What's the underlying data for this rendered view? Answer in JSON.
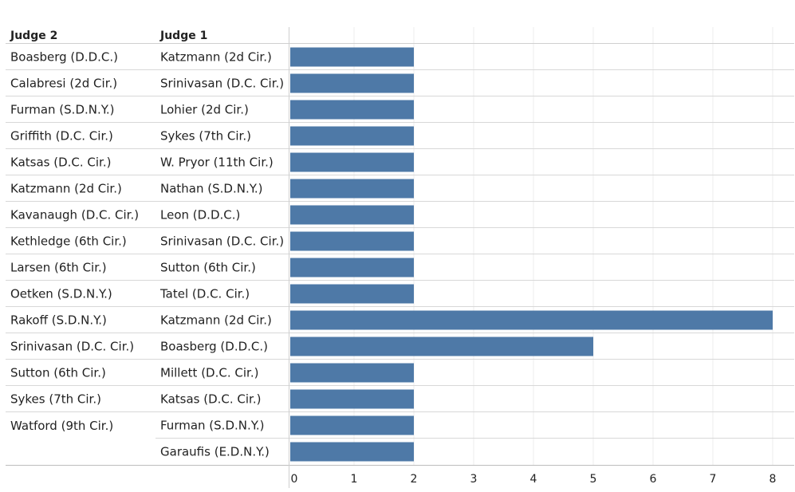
{
  "chart_data": {
    "type": "bar",
    "orientation": "horizontal",
    "headers": {
      "judge2": "Judge 2",
      "judge1": "Judge 1"
    },
    "rows": [
      {
        "judge2": "Boasberg (D.D.C.)",
        "judge1": "Katzmann (2d Cir.)",
        "value": 2
      },
      {
        "judge2": "Calabresi (2d Cir.)",
        "judge1": "Srinivasan (D.C. Cir.)",
        "value": 2
      },
      {
        "judge2": "Furman (S.D.N.Y.)",
        "judge1": "Lohier (2d Cir.)",
        "value": 2
      },
      {
        "judge2": "Griffith (D.C. Cir.)",
        "judge1": "Sykes (7th Cir.)",
        "value": 2
      },
      {
        "judge2": "Katsas (D.C. Cir.)",
        "judge1": "W. Pryor (11th Cir.)",
        "value": 2
      },
      {
        "judge2": "Katzmann (2d Cir.)",
        "judge1": "Nathan (S.D.N.Y.)",
        "value": 2
      },
      {
        "judge2": "Kavanaugh (D.C. Cir.)",
        "judge1": "Leon (D.D.C.)",
        "value": 2
      },
      {
        "judge2": "Kethledge (6th Cir.)",
        "judge1": "Srinivasan (D.C. Cir.)",
        "value": 2
      },
      {
        "judge2": "Larsen (6th Cir.)",
        "judge1": "Sutton (6th Cir.)",
        "value": 2
      },
      {
        "judge2": "Oetken (S.D.N.Y.)",
        "judge1": "Tatel (D.C. Cir.)",
        "value": 2
      },
      {
        "judge2": "Rakoff (S.D.N.Y.)",
        "judge1": "Katzmann (2d Cir.)",
        "value": 8
      },
      {
        "judge2": "Srinivasan (D.C. Cir.)",
        "judge1": "Boasberg (D.D.C.)",
        "value": 5
      },
      {
        "judge2": "Sutton (6th Cir.)",
        "judge1": "Millett (D.C. Cir.)",
        "value": 2
      },
      {
        "judge2": "Sykes (7th Cir.)",
        "judge1": "Katsas (D.C. Cir.)",
        "value": 2
      },
      {
        "judge2": "Watford (9th Cir.)",
        "judge1": "Furman (S.D.N.Y.)",
        "value": 2,
        "group": "watford"
      },
      {
        "judge2": "",
        "judge1": "Garaufis (E.D.N.Y.)",
        "value": 2,
        "group": "watford"
      }
    ],
    "xlim": [
      0,
      8
    ],
    "xticks": [
      "0",
      "1",
      "2",
      "3",
      "4",
      "5",
      "6",
      "7",
      "8"
    ],
    "grid": true,
    "bar_color": "#4e79a7"
  }
}
